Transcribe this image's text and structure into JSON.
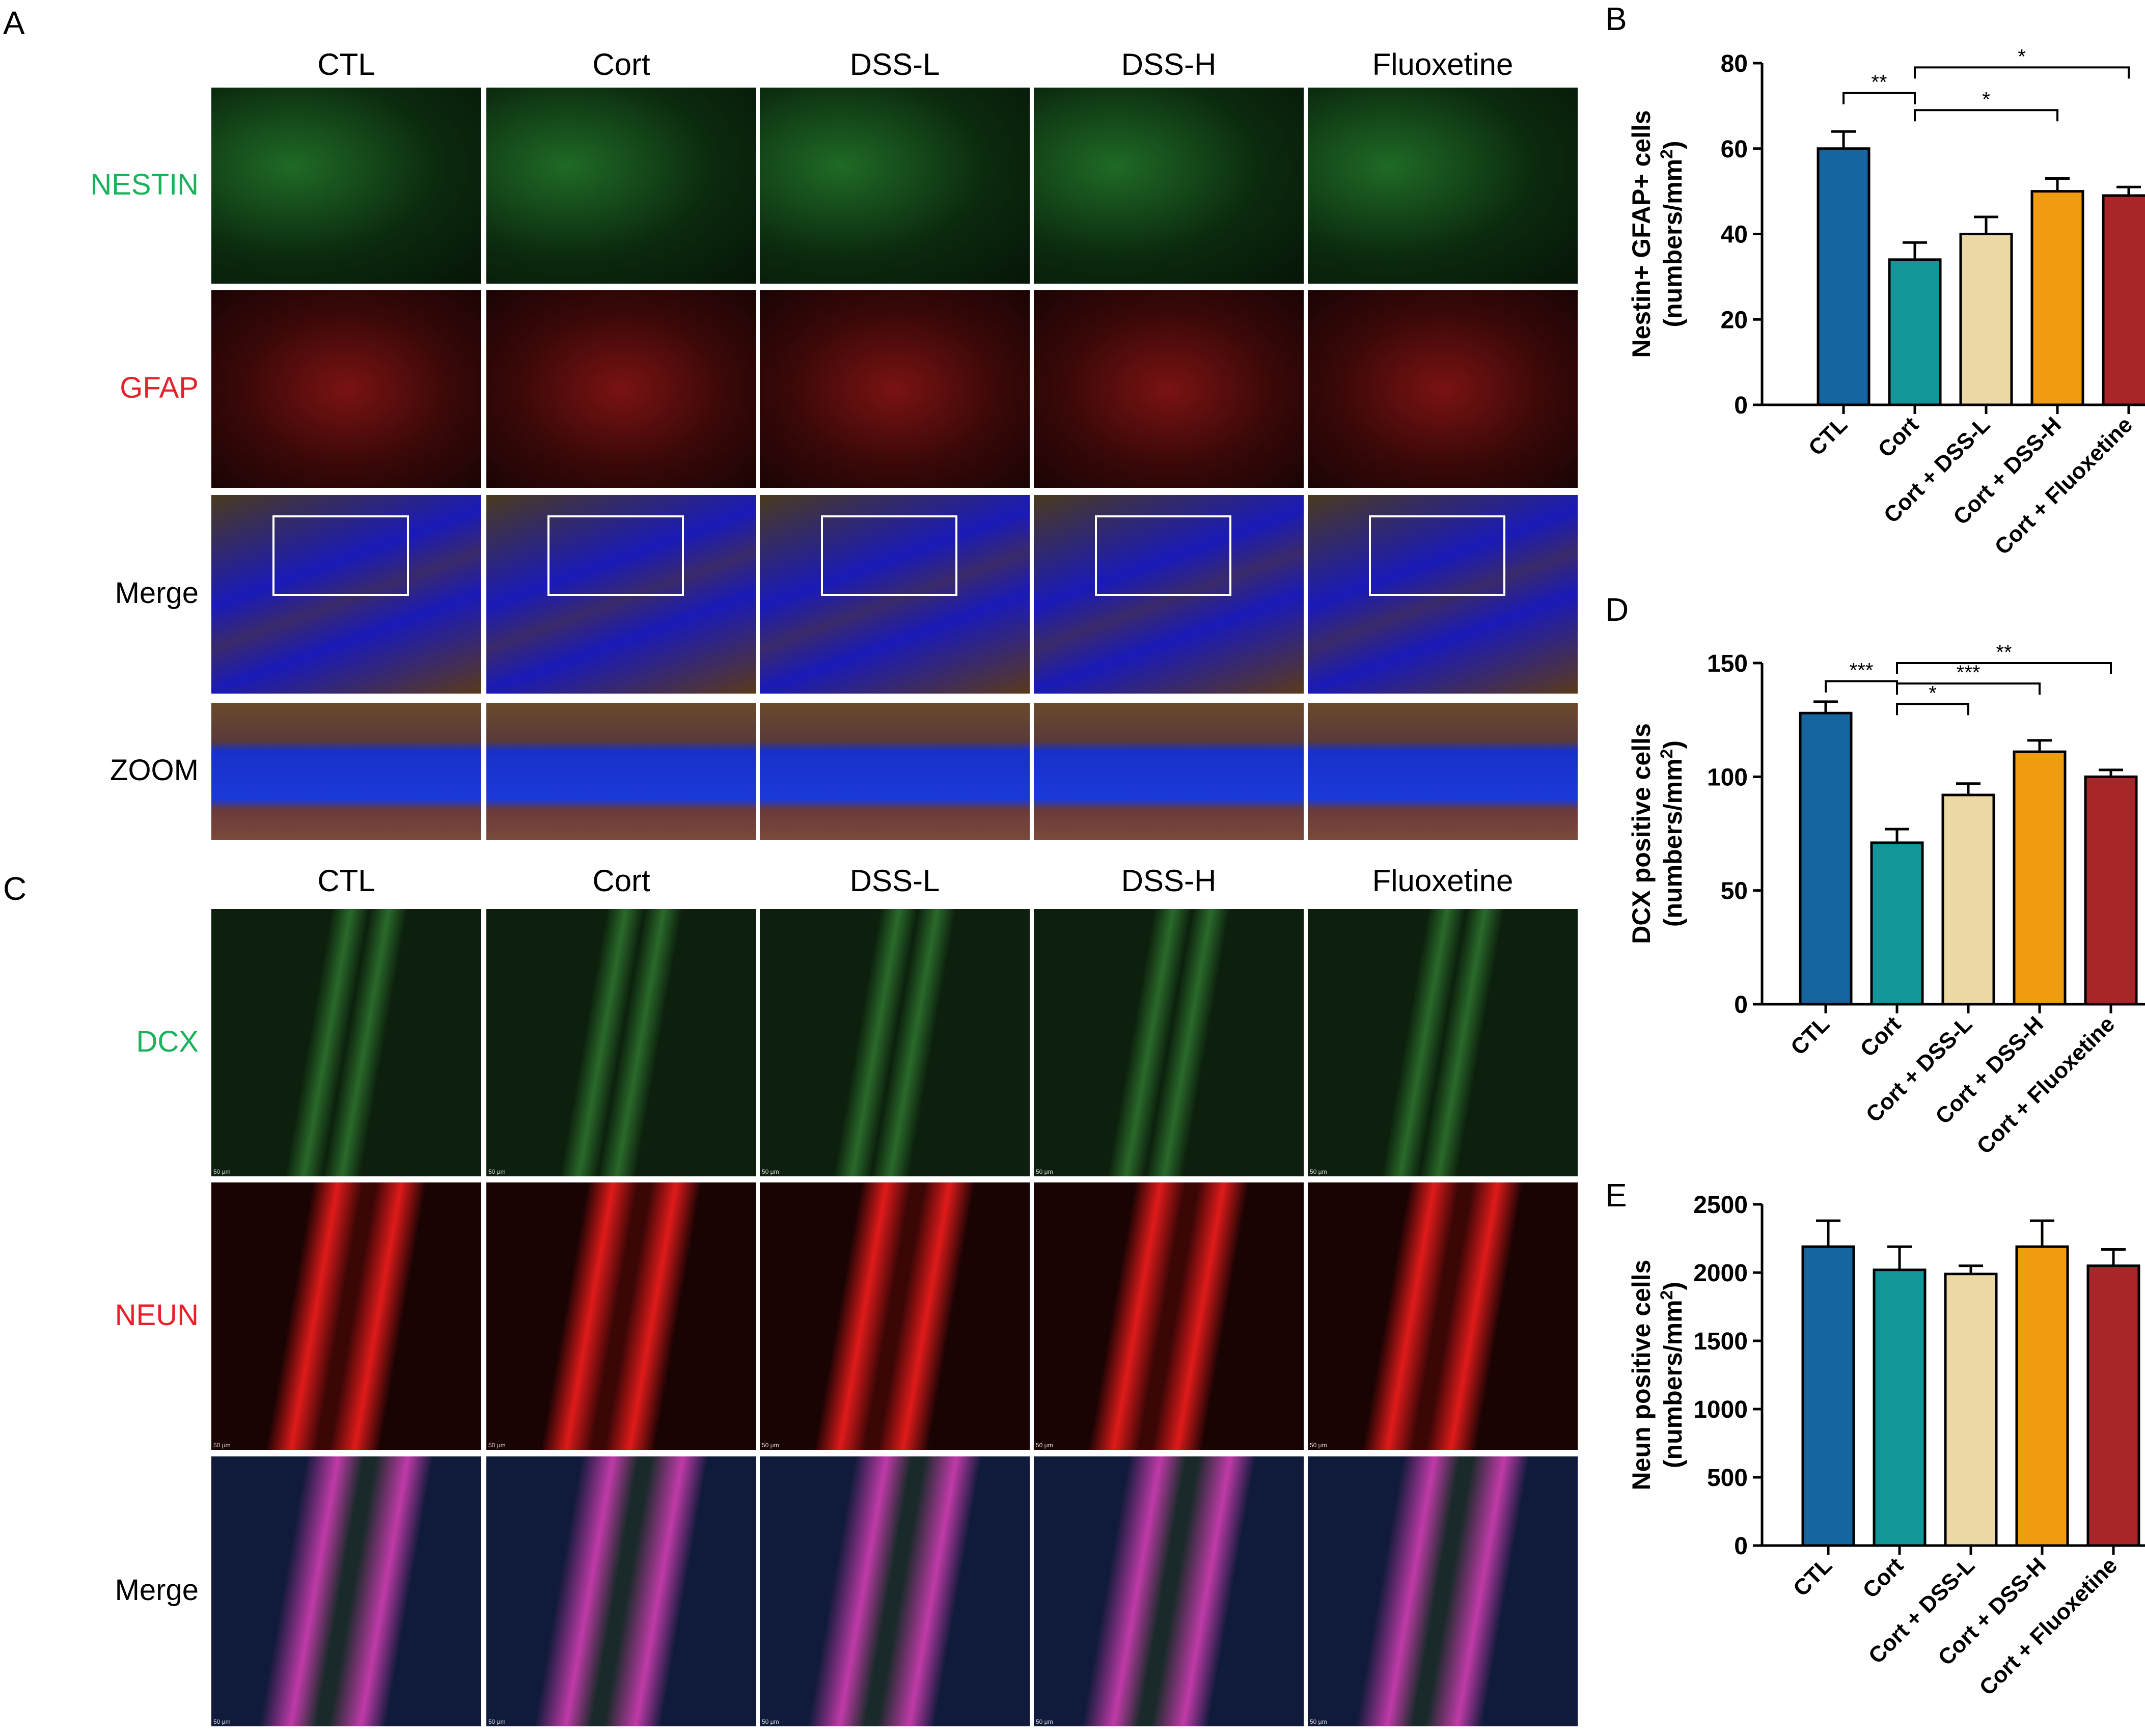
{
  "panels": {
    "A": {
      "letter": "A",
      "columns": [
        "CTL",
        "Cort",
        "DSS-L",
        "DSS-H",
        "Fluoxetine"
      ],
      "rows": [
        {
          "label": "NESTIN",
          "color": "#18b35a"
        },
        {
          "label": "GFAP",
          "color": "#e8202a"
        },
        {
          "label": "Merge",
          "color": "#000000"
        },
        {
          "label": "ZOOM",
          "color": "#000000"
        }
      ]
    },
    "C": {
      "letter": "C",
      "columns": [
        "CTL",
        "Cort",
        "DSS-L",
        "DSS-H",
        "Fluoxetine"
      ],
      "rows": [
        {
          "label": "DCX",
          "color": "#18b35a"
        },
        {
          "label": "NEUN",
          "color": "#e8202a"
        },
        {
          "label": "Merge",
          "color": "#000000"
        }
      ],
      "scale_bar": "50 μm"
    }
  },
  "colors": {
    "CTL": "#1565a0",
    "Cort": "#13969a",
    "Cort + DSS-L": "#ecd8a4",
    "Cort + DSS-H": "#f09c10",
    "Cort + Fluoxetine": "#a8262a"
  },
  "chart_data": [
    {
      "panel": "B",
      "type": "bar",
      "categories": [
        "CTL",
        "Cort",
        "Cort + DSS-L",
        "Cort + DSS-H",
        "Cort + Fluoxetine"
      ],
      "values": [
        60,
        34,
        40,
        50,
        49
      ],
      "errors": [
        4,
        4,
        4,
        3,
        2
      ],
      "ylabel_line1": "Nestin+ GFAP+ cells",
      "ylabel_line2": "(numbers/mm",
      "ylabel_sup": "2",
      "ylabel_close": ")",
      "ylim": [
        0,
        80
      ],
      "yticks": [
        0,
        20,
        40,
        60,
        80
      ],
      "significance": [
        {
          "from": 0,
          "to": 1,
          "label": "**",
          "level": 73
        },
        {
          "from": 1,
          "to": 3,
          "label": "*",
          "level": 69
        },
        {
          "from": 1,
          "to": 4,
          "label": "*",
          "level": 79
        }
      ]
    },
    {
      "panel": "D",
      "type": "bar",
      "categories": [
        "CTL",
        "Cort",
        "Cort + DSS-L",
        "Cort + DSS-H",
        "Cort + Fluoxetine"
      ],
      "values": [
        128,
        71,
        92,
        111,
        100
      ],
      "errors": [
        5,
        6,
        5,
        5,
        3
      ],
      "ylabel_line1": "DCX positive cells",
      "ylabel_line2": "(numbers/mm",
      "ylabel_sup": "2",
      "ylabel_close": ")",
      "ylim": [
        0,
        150
      ],
      "yticks": [
        0,
        50,
        100,
        150
      ],
      "significance": [
        {
          "from": 0,
          "to": 1,
          "label": "***",
          "level": 142
        },
        {
          "from": 1,
          "to": 2,
          "label": "*",
          "level": 132
        },
        {
          "from": 1,
          "to": 3,
          "label": "***",
          "level": 141
        },
        {
          "from": 1,
          "to": 4,
          "label": "**",
          "level": 150
        }
      ]
    },
    {
      "panel": "E",
      "type": "bar",
      "categories": [
        "CTL",
        "Cort",
        "Cort + DSS-L",
        "Cort + DSS-H",
        "Cort + Fluoxetine"
      ],
      "values": [
        2190,
        2020,
        1990,
        2190,
        2050
      ],
      "errors": [
        190,
        170,
        60,
        190,
        120
      ],
      "ylabel_line1": "Neun positive cells",
      "ylabel_line2": "(numbers/mm",
      "ylabel_sup": "2",
      "ylabel_close": ")",
      "ylim": [
        0,
        2500
      ],
      "yticks": [
        0,
        500,
        1000,
        1500,
        2000,
        2500
      ],
      "significance": []
    }
  ]
}
